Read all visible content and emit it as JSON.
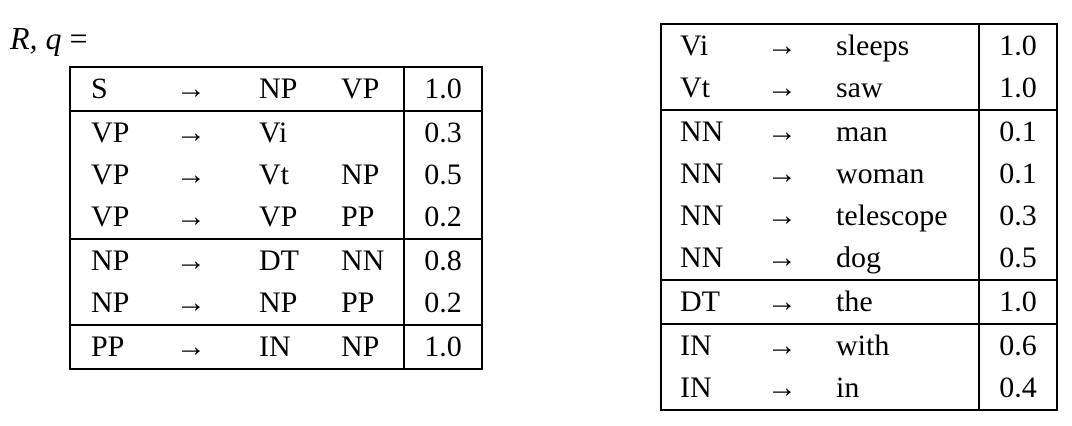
{
  "label": {
    "var": "R, q",
    "eq": "="
  },
  "arrow": "→",
  "left_table": {
    "groups": [
      [
        {
          "lhs": "S",
          "r1": "NP",
          "r2": "VP",
          "p": "1.0"
        }
      ],
      [
        {
          "lhs": "VP",
          "r1": "Vi",
          "r2": "",
          "p": "0.3"
        },
        {
          "lhs": "VP",
          "r1": "Vt",
          "r2": "NP",
          "p": "0.5"
        },
        {
          "lhs": "VP",
          "r1": "VP",
          "r2": "PP",
          "p": "0.2"
        }
      ],
      [
        {
          "lhs": "NP",
          "r1": "DT",
          "r2": "NN",
          "p": "0.8"
        },
        {
          "lhs": "NP",
          "r1": "NP",
          "r2": "PP",
          "p": "0.2"
        }
      ],
      [
        {
          "lhs": "PP",
          "r1": "IN",
          "r2": "NP",
          "p": "1.0"
        }
      ]
    ]
  },
  "right_table": {
    "groups": [
      [
        {
          "lhs": "Vi",
          "r1": "sleeps",
          "p": "1.0"
        },
        {
          "lhs": "Vt",
          "r1": "saw",
          "p": "1.0"
        }
      ],
      [
        {
          "lhs": "NN",
          "r1": "man",
          "p": "0.1"
        },
        {
          "lhs": "NN",
          "r1": "woman",
          "p": "0.1"
        },
        {
          "lhs": "NN",
          "r1": "telescope",
          "p": "0.3"
        },
        {
          "lhs": "NN",
          "r1": "dog",
          "p": "0.5"
        }
      ],
      [
        {
          "lhs": "DT",
          "r1": "the",
          "p": "1.0"
        }
      ],
      [
        {
          "lhs": "IN",
          "r1": "with",
          "p": "0.6"
        },
        {
          "lhs": "IN",
          "r1": "in",
          "p": "0.4"
        }
      ]
    ]
  }
}
